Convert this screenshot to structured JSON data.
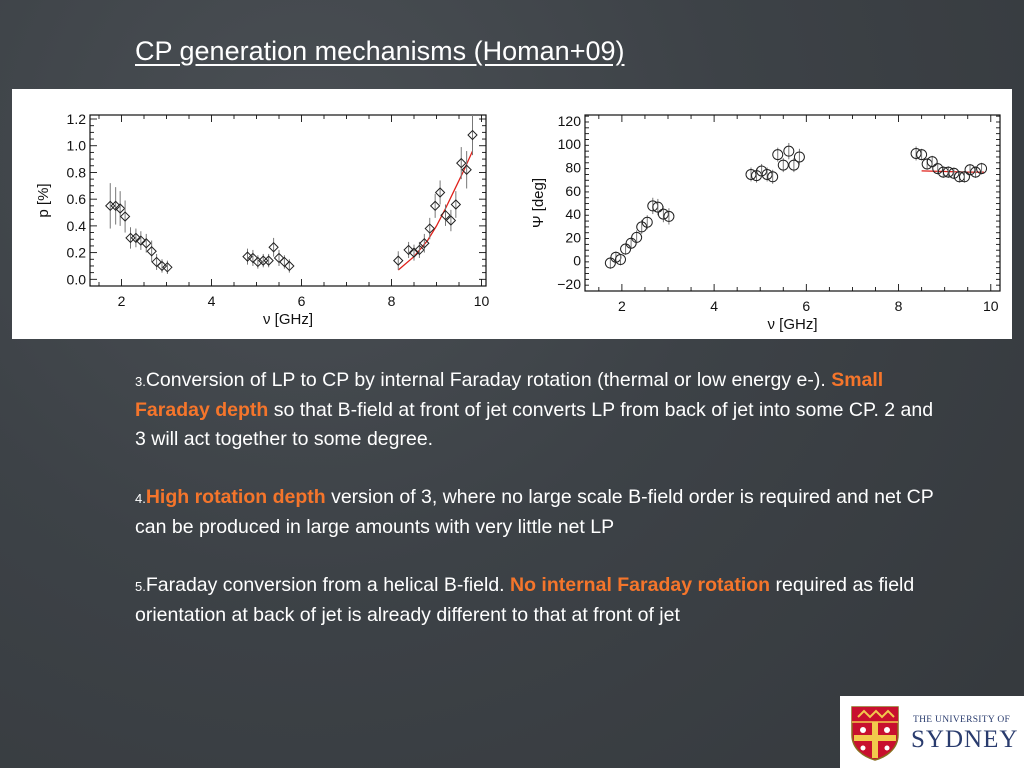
{
  "slide": {
    "title": "CP generation mechanisms (Homan+09)",
    "points": [
      {
        "num": "3.",
        "text1": "Conversion of LP to CP by internal Faraday rotation (thermal or low energy e-). ",
        "highlight": "Small Faraday depth",
        "text2": " so that B-field at front of jet converts LP from back of jet into some CP. 2 and 3 will act together to some degree."
      },
      {
        "num": "4.",
        "highlight": "High rotation depth",
        "text2": " version of 3, where no large scale B-field order is required and net CP can be produced in large amounts with very little net LP"
      },
      {
        "num": "5.",
        "text1": "Faraday conversion from a helical B-field. ",
        "highlight": "No internal Faraday rotation",
        "text2": " required as field orientation at back of jet is already different to that at front of jet"
      }
    ],
    "highlight_color": "#f5752b"
  },
  "logo": {
    "line1": "THE UNIVERSITY OF",
    "line2": "SYDNEY",
    "color": "#2a3c6e"
  },
  "chart_data": [
    {
      "type": "scatter",
      "xlabel": "ν [GHz]",
      "ylabel": "p [%]",
      "xlim": [
        1.3,
        10.1
      ],
      "ylim": [
        -0.05,
        1.23
      ],
      "xticks": [
        "2",
        "4",
        "6",
        "8",
        "10"
      ],
      "yticks": [
        "0.0",
        "0.2",
        "0.4",
        "0.6",
        "0.8",
        "1.0",
        "1.2"
      ],
      "marker": "diamond",
      "points": [
        {
          "x": 1.75,
          "y": 0.55,
          "err": 0.17
        },
        {
          "x": 1.87,
          "y": 0.55,
          "err": 0.14
        },
        {
          "x": 1.97,
          "y": 0.53,
          "err": 0.13
        },
        {
          "x": 2.08,
          "y": 0.47,
          "err": 0.12
        },
        {
          "x": 2.2,
          "y": 0.31,
          "err": 0.08
        },
        {
          "x": 2.32,
          "y": 0.31,
          "err": 0.07
        },
        {
          "x": 2.43,
          "y": 0.29,
          "err": 0.07
        },
        {
          "x": 2.55,
          "y": 0.27,
          "err": 0.07
        },
        {
          "x": 2.67,
          "y": 0.21,
          "err": 0.08
        },
        {
          "x": 2.78,
          "y": 0.13,
          "err": 0.06
        },
        {
          "x": 2.9,
          "y": 0.1,
          "err": 0.05
        },
        {
          "x": 3.02,
          "y": 0.09,
          "err": 0.05
        },
        {
          "x": 4.8,
          "y": 0.17,
          "err": 0.06
        },
        {
          "x": 4.92,
          "y": 0.16,
          "err": 0.06
        },
        {
          "x": 5.03,
          "y": 0.13,
          "err": 0.05
        },
        {
          "x": 5.15,
          "y": 0.14,
          "err": 0.05
        },
        {
          "x": 5.27,
          "y": 0.14,
          "err": 0.05
        },
        {
          "x": 5.38,
          "y": 0.24,
          "err": 0.07
        },
        {
          "x": 5.5,
          "y": 0.16,
          "err": 0.06
        },
        {
          "x": 5.62,
          "y": 0.13,
          "err": 0.05
        },
        {
          "x": 5.73,
          "y": 0.1,
          "err": 0.05
        },
        {
          "x": 8.15,
          "y": 0.14,
          "err": 0.07
        },
        {
          "x": 8.38,
          "y": 0.22,
          "err": 0.06
        },
        {
          "x": 8.5,
          "y": 0.2,
          "err": 0.06
        },
        {
          "x": 8.62,
          "y": 0.22,
          "err": 0.06
        },
        {
          "x": 8.73,
          "y": 0.27,
          "err": 0.07
        },
        {
          "x": 8.85,
          "y": 0.38,
          "err": 0.08
        },
        {
          "x": 8.97,
          "y": 0.55,
          "err": 0.09
        },
        {
          "x": 9.08,
          "y": 0.65,
          "err": 0.09
        },
        {
          "x": 9.2,
          "y": 0.48,
          "err": 0.08
        },
        {
          "x": 9.32,
          "y": 0.44,
          "err": 0.08
        },
        {
          "x": 9.43,
          "y": 0.56,
          "err": 0.1
        },
        {
          "x": 9.55,
          "y": 0.87,
          "err": 0.12
        },
        {
          "x": 9.67,
          "y": 0.82,
          "err": 0.14
        },
        {
          "x": 9.8,
          "y": 1.08,
          "err": 0.15
        }
      ],
      "fit": {
        "color": "#e0211b",
        "x": [
          8.15,
          8.5,
          8.8,
          9.0,
          9.2,
          9.4,
          9.6,
          9.8
        ],
        "y": [
          0.07,
          0.17,
          0.29,
          0.4,
          0.53,
          0.67,
          0.81,
          0.96
        ]
      }
    },
    {
      "type": "scatter",
      "xlabel": "ν [GHz]",
      "ylabel": "Ψ [deg]",
      "xlim": [
        1.2,
        10.2
      ],
      "ylim": [
        -26,
        125
      ],
      "xticks": [
        "2",
        "4",
        "6",
        "8",
        "10"
      ],
      "yticks": [
        "−20",
        "0",
        "20",
        "40",
        "60",
        "80",
        "100",
        "120"
      ],
      "marker": "circle",
      "points": [
        {
          "x": 1.75,
          "y": -2,
          "err": 5
        },
        {
          "x": 1.87,
          "y": 3,
          "err": 5
        },
        {
          "x": 1.97,
          "y": 1,
          "err": 5
        },
        {
          "x": 2.08,
          "y": 10,
          "err": 5
        },
        {
          "x": 2.2,
          "y": 15,
          "err": 5
        },
        {
          "x": 2.32,
          "y": 20,
          "err": 6
        },
        {
          "x": 2.43,
          "y": 29,
          "err": 6
        },
        {
          "x": 2.55,
          "y": 33,
          "err": 6
        },
        {
          "x": 2.67,
          "y": 47,
          "err": 7
        },
        {
          "x": 2.78,
          "y": 46,
          "err": 7
        },
        {
          "x": 2.9,
          "y": 40,
          "err": 7
        },
        {
          "x": 3.02,
          "y": 38,
          "err": 7
        },
        {
          "x": 4.8,
          "y": 74,
          "err": 6
        },
        {
          "x": 4.92,
          "y": 73,
          "err": 6
        },
        {
          "x": 5.03,
          "y": 77,
          "err": 6
        },
        {
          "x": 5.15,
          "y": 74,
          "err": 6
        },
        {
          "x": 5.27,
          "y": 72,
          "err": 6
        },
        {
          "x": 5.38,
          "y": 91,
          "err": 6
        },
        {
          "x": 5.5,
          "y": 82,
          "err": 6
        },
        {
          "x": 5.62,
          "y": 94,
          "err": 7
        },
        {
          "x": 5.73,
          "y": 82,
          "err": 6
        },
        {
          "x": 5.85,
          "y": 89,
          "err": 7
        },
        {
          "x": 8.38,
          "y": 92,
          "err": 6
        },
        {
          "x": 8.5,
          "y": 91,
          "err": 5
        },
        {
          "x": 8.62,
          "y": 83,
          "err": 5
        },
        {
          "x": 8.73,
          "y": 85,
          "err": 5
        },
        {
          "x": 8.85,
          "y": 79,
          "err": 5
        },
        {
          "x": 8.97,
          "y": 76,
          "err": 5
        },
        {
          "x": 9.08,
          "y": 76,
          "err": 5
        },
        {
          "x": 9.2,
          "y": 75,
          "err": 5
        },
        {
          "x": 9.32,
          "y": 72,
          "err": 5
        },
        {
          "x": 9.43,
          "y": 72,
          "err": 5
        },
        {
          "x": 9.55,
          "y": 78,
          "err": 5
        },
        {
          "x": 9.67,
          "y": 76,
          "err": 5
        },
        {
          "x": 9.8,
          "y": 79,
          "err": 5
        }
      ],
      "fit": {
        "color": "#e0211b",
        "x": [
          8.5,
          9.0,
          9.5,
          9.85
        ],
        "y": [
          77,
          76.5,
          76,
          76
        ]
      }
    }
  ]
}
